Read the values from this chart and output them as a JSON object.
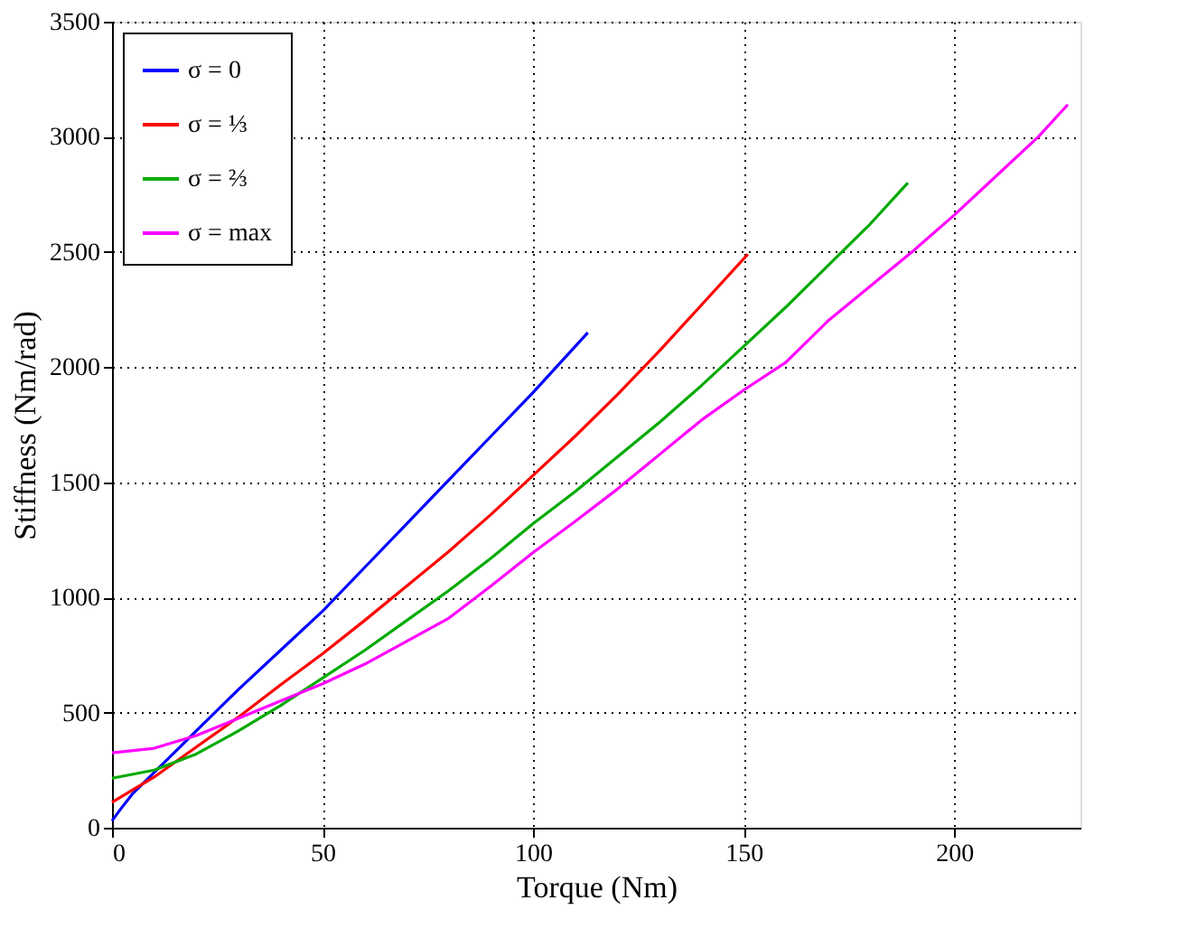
{
  "chart_data": {
    "type": "line",
    "xlabel": "Torque (Nm)",
    "ylabel": "Stiffness (Nm/rad)",
    "xlim": [
      0,
      230
    ],
    "xticks": [
      0,
      50,
      100,
      150,
      200
    ],
    "ylim": [
      0,
      3500
    ],
    "yticks": [
      0,
      500,
      1000,
      1500,
      2000,
      2500,
      3000,
      3500
    ],
    "grid": true,
    "legend": "top left",
    "line_style": "solid",
    "marker": "none",
    "series": [
      {
        "name": "σ = 0",
        "color": "#0000ff",
        "x": [
          0,
          2,
          5,
          10,
          20,
          30,
          40,
          50,
          60,
          70,
          80,
          90,
          100,
          113
        ],
        "values": [
          30,
          80,
          150,
          240,
          420,
          600,
          770,
          940,
          1130,
          1320,
          1510,
          1700,
          1890,
          2150
        ]
      },
      {
        "name": "σ = ⅓",
        "color": "#ff0000",
        "x": [
          0,
          10,
          20,
          30,
          40,
          50,
          60,
          70,
          80,
          90,
          100,
          110,
          120,
          130,
          140,
          151
        ],
        "values": [
          110,
          220,
          350,
          480,
          620,
          755,
          900,
          1050,
          1200,
          1360,
          1530,
          1700,
          1880,
          2070,
          2270,
          2490
        ]
      },
      {
        "name": "σ = ⅔",
        "color": "#00aa00",
        "x": [
          0,
          10,
          20,
          30,
          40,
          50,
          60,
          70,
          80,
          90,
          100,
          110,
          120,
          130,
          140,
          150,
          160,
          170,
          180,
          189
        ],
        "values": [
          215,
          250,
          320,
          420,
          530,
          650,
          770,
          900,
          1030,
          1170,
          1320,
          1460,
          1610,
          1760,
          1920,
          2090,
          2260,
          2440,
          2620,
          2800
        ]
      },
      {
        "name": "σ = max",
        "color": "#ff00ff",
        "x": [
          0,
          10,
          20,
          30,
          40,
          50,
          60,
          70,
          80,
          90,
          100,
          110,
          120,
          130,
          140,
          150,
          160,
          170,
          180,
          190,
          200,
          210,
          220,
          227
        ],
        "values": [
          325,
          345,
          400,
          475,
          550,
          625,
          710,
          810,
          910,
          1050,
          1195,
          1330,
          1470,
          1620,
          1770,
          1900,
          2020,
          2200,
          2350,
          2500,
          2660,
          2830,
          3000,
          3140
        ]
      }
    ]
  }
}
